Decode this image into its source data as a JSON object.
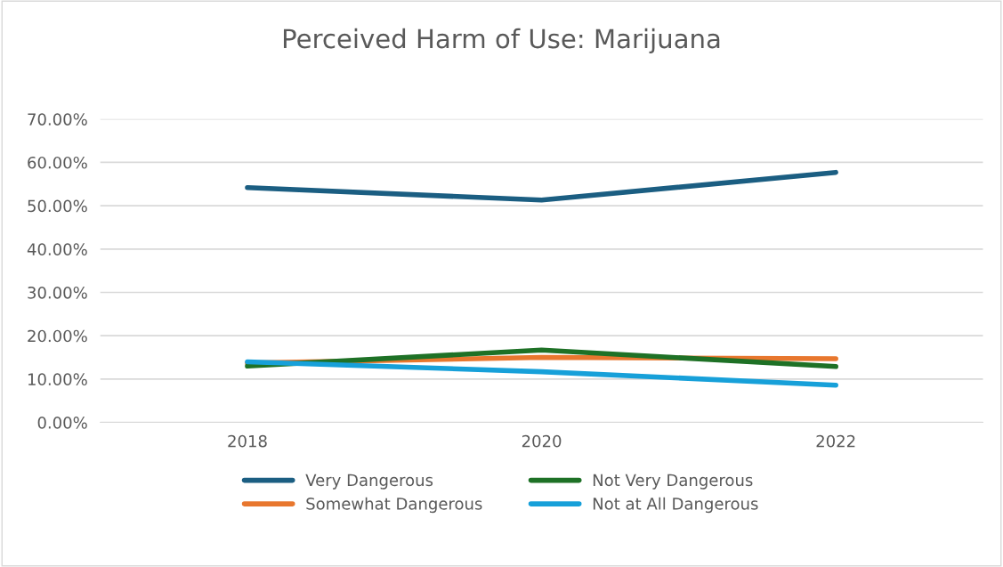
{
  "chart_data": {
    "type": "line",
    "title": "Perceived Harm of Use: Marijuana",
    "categories": [
      "2018",
      "2020",
      "2022"
    ],
    "series": [
      {
        "name": "Very Dangerous",
        "color": "#1b5e82",
        "values": [
          54.2,
          51.3,
          57.7
        ]
      },
      {
        "name": "Somewhat Dangerous",
        "color": "#e8772e",
        "values": [
          13.7,
          15.0,
          14.7
        ]
      },
      {
        "name": "Not Very Dangerous",
        "color": "#1e7126",
        "values": [
          13.0,
          16.7,
          12.9
        ]
      },
      {
        "name": "Not at All Dangerous",
        "color": "#17a0d9",
        "values": [
          14.0,
          11.7,
          8.6
        ]
      }
    ],
    "ylim": [
      0,
      70
    ],
    "yticks": [
      {
        "value": 0,
        "label": "0.00%"
      },
      {
        "value": 10,
        "label": "10.00%"
      },
      {
        "value": 20,
        "label": "20.00%"
      },
      {
        "value": 30,
        "label": "30.00%"
      },
      {
        "value": 40,
        "label": "40.00%"
      },
      {
        "value": 50,
        "label": "50.00%"
      },
      {
        "value": 60,
        "label": "60.00%"
      },
      {
        "value": 70,
        "label": "70.00%"
      }
    ],
    "grid": "y",
    "legend": "bottom",
    "marker": "none",
    "line_style": "solid"
  }
}
